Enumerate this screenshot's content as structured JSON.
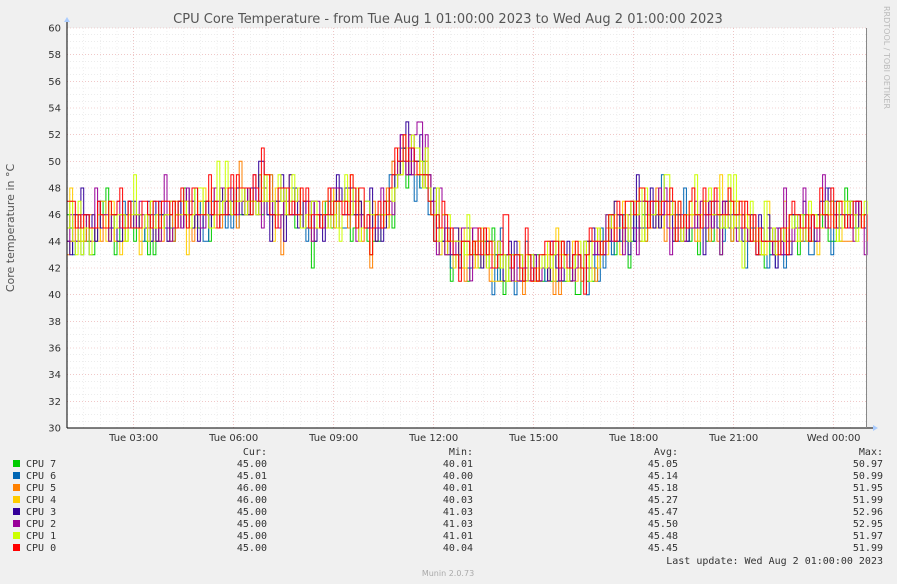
{
  "chart_data": {
    "type": "line",
    "title": "CPU Core Temperature - from Tue Aug  1 01:00:00 2023 to Wed Aug  2 01:00:00 2023",
    "ylabel": "Core temperature in °C",
    "ylim": [
      30,
      60
    ],
    "xlim": [
      "Tue 01:00",
      "Wed 01:00"
    ],
    "xrange_hours": [
      1,
      25
    ],
    "y_ticks": [
      30,
      32,
      34,
      36,
      38,
      40,
      42,
      44,
      46,
      48,
      50,
      52,
      54,
      56,
      58,
      60
    ],
    "x_ticks": [
      {
        "label": "Tue 03:00",
        "hour": 3
      },
      {
        "label": "Tue 06:00",
        "hour": 6
      },
      {
        "label": "Tue 09:00",
        "hour": 9
      },
      {
        "label": "Tue 12:00",
        "hour": 12
      },
      {
        "label": "Tue 15:00",
        "hour": 15
      },
      {
        "label": "Tue 18:00",
        "hour": 18
      },
      {
        "label": "Tue 21:00",
        "hour": 21
      },
      {
        "label": "Wed 00:00",
        "hour": 24
      }
    ],
    "grid": true,
    "legend_columns": {
      "cur": "Cur:",
      "min": "Min:",
      "avg": "Avg:",
      "max": "Max:"
    },
    "series": [
      {
        "name": "CPU 7",
        "color": "#00cc00",
        "cur": "45.00",
        "min": "40.01",
        "avg": "45.05",
        "max": "50.97"
      },
      {
        "name": "CPU 6",
        "color": "#0066b3",
        "cur": "45.01",
        "min": "40.00",
        "avg": "45.14",
        "max": "50.99"
      },
      {
        "name": "CPU 5",
        "color": "#ff8000",
        "cur": "46.00",
        "min": "40.01",
        "avg": "45.18",
        "max": "51.95"
      },
      {
        "name": "CPU 4",
        "color": "#ffcc00",
        "cur": "46.00",
        "min": "40.03",
        "avg": "45.27",
        "max": "51.99"
      },
      {
        "name": "CPU 3",
        "color": "#330099",
        "cur": "45.00",
        "min": "41.03",
        "avg": "45.47",
        "max": "52.96"
      },
      {
        "name": "CPU 2",
        "color": "#990099",
        "cur": "45.00",
        "min": "41.03",
        "avg": "45.50",
        "max": "52.95"
      },
      {
        "name": "CPU 1",
        "color": "#ccff00",
        "cur": "45.00",
        "min": "41.01",
        "avg": "45.48",
        "max": "51.97"
      },
      {
        "name": "CPU 0",
        "color": "#ff0000",
        "cur": "45.00",
        "min": "40.04",
        "avg": "45.45",
        "max": "51.99"
      }
    ],
    "profile": [
      [
        1.0,
        45
      ],
      [
        1.6,
        44.5
      ],
      [
        2.0,
        45.5
      ],
      [
        2.6,
        45
      ],
      [
        3.0,
        46
      ],
      [
        3.5,
        45
      ],
      [
        4.0,
        45.5
      ],
      [
        4.7,
        46.5
      ],
      [
        5.3,
        46
      ],
      [
        5.8,
        47
      ],
      [
        6.3,
        47
      ],
      [
        6.8,
        48
      ],
      [
        7.3,
        46.5
      ],
      [
        7.8,
        47
      ],
      [
        8.3,
        45.5
      ],
      [
        8.8,
        46
      ],
      [
        9.3,
        47
      ],
      [
        9.8,
        46
      ],
      [
        10.3,
        45
      ],
      [
        10.6,
        47
      ],
      [
        11.0,
        50.5
      ],
      [
        11.5,
        50
      ],
      [
        11.8,
        48.5
      ],
      [
        12.0,
        45.5
      ],
      [
        12.5,
        44
      ],
      [
        12.8,
        43
      ],
      [
        13.3,
        44
      ],
      [
        13.8,
        42.5
      ],
      [
        14.3,
        42.5
      ],
      [
        14.8,
        42
      ],
      [
        15.3,
        42
      ],
      [
        15.8,
        42.5
      ],
      [
        16.3,
        42
      ],
      [
        16.7,
        43
      ],
      [
        17.2,
        44.5
      ],
      [
        17.7,
        45.5
      ],
      [
        18.3,
        46
      ],
      [
        18.8,
        46.5
      ],
      [
        19.3,
        45
      ],
      [
        19.8,
        45.5
      ],
      [
        20.3,
        46
      ],
      [
        20.8,
        46
      ],
      [
        21.3,
        45
      ],
      [
        21.8,
        44
      ],
      [
        22.3,
        44
      ],
      [
        22.8,
        45
      ],
      [
        23.3,
        45
      ],
      [
        23.8,
        46
      ],
      [
        24.3,
        45.5
      ],
      [
        25.0,
        45.5
      ]
    ],
    "last_update": "Last update: Wed Aug  2 01:00:00 2023",
    "side_label": "RRDTOOL / TOBI OETIKER",
    "footer": "Munin 2.0.73"
  }
}
